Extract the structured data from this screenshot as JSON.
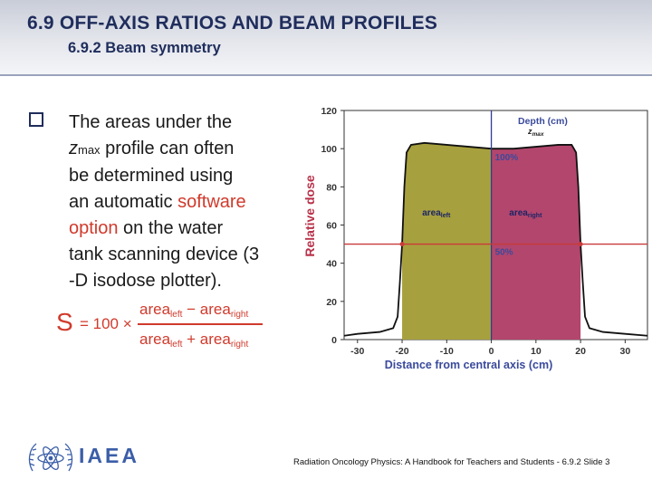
{
  "header": {
    "title": "6.9  OFF-AXIS RATIOS AND BEAM PROFILES",
    "subtitle": "6.9.2 Beam symmetry"
  },
  "body": {
    "line1": "The areas under the",
    "z": "z",
    "z_sub": "max",
    "line2_rest": " profile can often",
    "line3": "be determined using",
    "line4_pre": "an automatic ",
    "line4_accent": "software",
    "line5_accent": "option",
    "line5_rest": " on the water",
    "line6": "tank scanning device (3",
    "line7": "-D isodose plotter)."
  },
  "formula": {
    "symbol": "S",
    "prefix": "= 100 ×",
    "area": "area",
    "left": "left",
    "right": "right",
    "minus": "−",
    "plus": "+"
  },
  "chart_data": {
    "type": "area",
    "title": "",
    "xlabel": "Distance from central axis (cm)",
    "ylabel": "Relative dose",
    "xlim": [
      -33,
      35
    ],
    "ylim": [
      0,
      120
    ],
    "x_ticks": [
      -30,
      -20,
      -10,
      0,
      10,
      20,
      30
    ],
    "y_ticks": [
      0,
      20,
      40,
      60,
      80,
      100,
      120
    ],
    "profile": {
      "x": [
        -33,
        -30,
        -25,
        -22,
        -21,
        -20.5,
        -20,
        -19.5,
        -19,
        -18,
        -15,
        -10,
        -5,
        0,
        5,
        10,
        15,
        18,
        19,
        19.5,
        20,
        20.5,
        21,
        22,
        25,
        30,
        35
      ],
      "y": [
        2,
        3,
        4,
        6,
        12,
        30,
        50,
        80,
        98,
        102,
        103,
        102,
        101,
        100,
        100,
        101,
        102,
        102,
        98,
        80,
        50,
        30,
        12,
        6,
        4,
        3,
        2
      ]
    },
    "area_left_color": "#a7a03e",
    "area_right_color": "#b3466d",
    "annotations": {
      "depth_label": "Depth (cm)",
      "zmax_label": "z",
      "zmax_sub": "max",
      "pct100": "100%",
      "pct50": "50%",
      "area_left": "area",
      "area_left_sub": "left",
      "area_right": "area",
      "area_right_sub": "right"
    },
    "reference_lines": {
      "central_axis_x": 0,
      "half_max_y": 50
    },
    "label_color": "#3a4a9c"
  },
  "footer": {
    "org": "IAEA",
    "credit": "Radiation Oncology Physics: A Handbook for Teachers and Students - 6.9.2 Slide 3"
  }
}
